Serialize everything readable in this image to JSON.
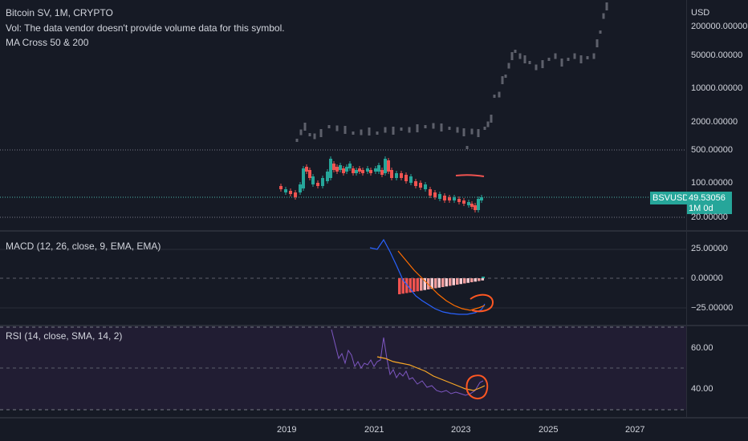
{
  "legend": {
    "symbol": "Bitcoin SV, 1M, CRYPTO",
    "volume_note": "Vol: The data vendor doesn't provide volume data for this symbol.",
    "ma_indicator": "MA Cross 50 & 200"
  },
  "macd": {
    "label": "MACD (12, 26, close, 9, EMA, EMA)"
  },
  "rsi": {
    "label": "RSI (14, close, SMA, 14, 2)"
  },
  "axis": {
    "currency": "USD",
    "price_ticks": [
      "200000.00000",
      "50000.00000",
      "10000.00000",
      "2000.00000",
      "500.00000",
      "100.00000",
      "20.00000"
    ],
    "macd_ticks": [
      "25.00000",
      "0.00000",
      "−25.00000"
    ],
    "rsi_ticks": [
      "60.00",
      "40.00"
    ],
    "years": [
      "2019",
      "2021",
      "2023",
      "2025",
      "2027"
    ]
  },
  "price_badge": {
    "symbol": "BSVUSD",
    "price": "49.53056",
    "countdown": "1M 0d"
  },
  "colors": {
    "background": "#161a25",
    "up": "#26a69a",
    "down": "#ef5350",
    "macd_line": "#2962ff",
    "signal_line": "#ff6d00",
    "rsi_line": "#7e57c2",
    "rsi_ma": "#f9a825",
    "annotation": "#ff5722"
  }
}
